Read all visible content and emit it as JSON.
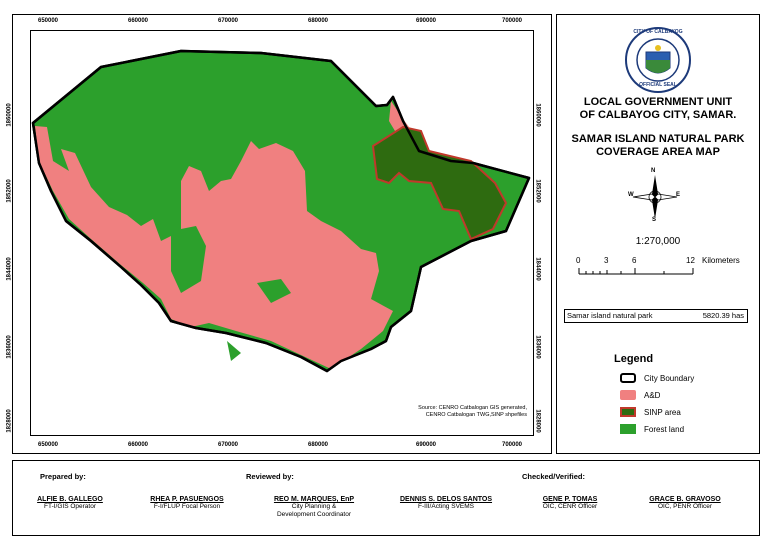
{
  "colors": {
    "ad": "#f08080",
    "forestland": "#2ca02c",
    "sinp": "#2e6b10",
    "sinp_border": "#c0392b",
    "boundary": "#000000"
  },
  "map": {
    "x_ticks_top": [
      "650000",
      "660000",
      "670000",
      "680000",
      "690000",
      "700000"
    ],
    "x_ticks_bottom": [
      "650000",
      "660000",
      "670000",
      "680000",
      "690000",
      "700000"
    ],
    "y_ticks": [
      "1860000",
      "1852000",
      "1844000",
      "1836000",
      "1828000"
    ],
    "source_line1": "Source: CENRO Catbalogan GIS generated,",
    "source_line2": "CENRO Catbalogan TWG,SINP shpefiles"
  },
  "panel": {
    "seal_top_text": "CITY OF CALBAYOG",
    "seal_bottom_text": "OFFICIAL SEAL",
    "lgu_line1": "LOCAL GOVERNMENT UNIT",
    "lgu_line2": "OF CALBAYOG CITY, SAMAR.",
    "map_title_line1": "SAMAR ISLAND NATURAL PARK",
    "map_title_line2": "COVERAGE AREA MAP",
    "compass": {
      "n": "N",
      "s": "S",
      "e": "E",
      "w": "W"
    },
    "scale_ratio": "1:270,000",
    "scale_labels": [
      "0",
      "3",
      "6",
      "12"
    ],
    "scale_unit": "Kilometers",
    "area_label": "Samar island natural park",
    "area_value": "5820.39 has",
    "legend_title": "Legend",
    "legend_items": [
      "City Boundary",
      "A&D",
      "SINP area",
      "Forest land"
    ]
  },
  "footer": {
    "prepared_by": "Prepared by:",
    "reviewed_by": "Reviewed by:",
    "checked_by": "Checked/Verified:",
    "signatories": [
      {
        "name": "ALFIE B. GALLEGO",
        "role1": "FT-I/GIS Operator",
        "role2": ""
      },
      {
        "name": "RHEA P. PASUENGOS",
        "role1": "F-I/FLUP Focal Person",
        "role2": ""
      },
      {
        "name": "REO M. MARQUES, EnP",
        "role1": "City Planning &",
        "role2": "Development Coordinator"
      },
      {
        "name": "DENNIS S. DELOS SANTOS",
        "role1": "F-III/Acting SVEMS",
        "role2": ""
      },
      {
        "name": "GENE P. TOMAS",
        "role1": "OIC, CENR Officer",
        "role2": ""
      },
      {
        "name": "GRACE B. GRAVOSO",
        "role1": "OIC, PENR Officer",
        "role2": ""
      }
    ]
  }
}
